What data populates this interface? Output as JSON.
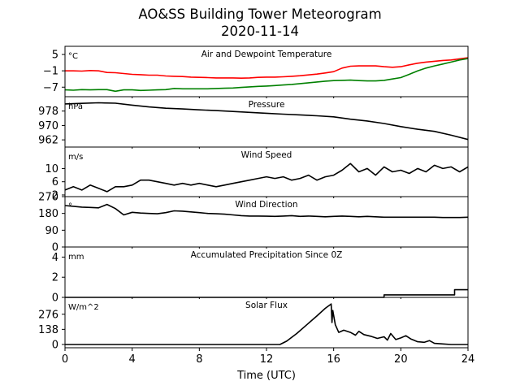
{
  "title": "AO&SS Building Tower Meteorogram",
  "subtitle": "2020-11-14",
  "xlabel": "Time (UTC)",
  "xticks": [
    "0",
    "4",
    "8",
    "12",
    "16",
    "20",
    "24"
  ],
  "colors": {
    "temperature": "#ff0000",
    "dewpoint": "#008000",
    "line": "#000000"
  },
  "chart_data": [
    {
      "type": "line",
      "title": "Air and Dewpoint Temperature",
      "unit": "°C",
      "ylim": [
        -10.5,
        8
      ],
      "yticks": [
        5,
        -1,
        -7
      ],
      "ytick_labels": [
        "5",
        "−1",
        "−7"
      ],
      "x": [
        0,
        0.5,
        1,
        1.5,
        2,
        2.5,
        3,
        3.5,
        4,
        4.5,
        5,
        5.5,
        6,
        6.5,
        7,
        7.5,
        8,
        8.5,
        9,
        9.5,
        10,
        10.5,
        11,
        11.5,
        12,
        12.5,
        13,
        13.5,
        14,
        14.5,
        15,
        15.5,
        16,
        16.5,
        17,
        17.5,
        18,
        18.5,
        19,
        19.5,
        20,
        20.5,
        21,
        21.5,
        22,
        22.5,
        23,
        23.5,
        24
      ],
      "series": [
        {
          "name": "",
          "color": "#ff0000",
          "values": [
            -1.0,
            -1.0,
            -1.1,
            -0.9,
            -1.0,
            -1.6,
            -1.7,
            -2.0,
            -2.3,
            -2.4,
            -2.6,
            -2.6,
            -2.9,
            -3.0,
            -3.1,
            -3.3,
            -3.4,
            -3.5,
            -3.6,
            -3.6,
            -3.6,
            -3.7,
            -3.6,
            -3.4,
            -3.3,
            -3.3,
            -3.2,
            -3.0,
            -2.8,
            -2.5,
            -2.2,
            -1.8,
            -1.3,
            0.0,
            0.7,
            0.8,
            0.8,
            0.8,
            0.5,
            0.3,
            0.5,
            1.2,
            1.8,
            2.2,
            2.5,
            2.8,
            3.0,
            3.4,
            3.8
          ]
        },
        {
          "name": "",
          "color": "#008000",
          "values": [
            -8.0,
            -8.1,
            -7.9,
            -8.0,
            -7.9,
            -7.9,
            -8.5,
            -8.0,
            -8.0,
            -8.2,
            -8.1,
            -8.0,
            -7.9,
            -7.5,
            -7.6,
            -7.6,
            -7.6,
            -7.6,
            -7.5,
            -7.4,
            -7.3,
            -7.1,
            -6.9,
            -6.7,
            -6.6,
            -6.4,
            -6.2,
            -6.0,
            -5.7,
            -5.4,
            -5.1,
            -4.8,
            -4.6,
            -4.5,
            -4.4,
            -4.6,
            -4.7,
            -4.7,
            -4.5,
            -4.0,
            -3.5,
            -2.3,
            -1.0,
            0.0,
            0.8,
            1.5,
            2.2,
            3.0,
            3.5
          ]
        }
      ]
    },
    {
      "type": "line",
      "title": "Pressure",
      "unit": "hPa",
      "ylim": [
        958,
        986
      ],
      "yticks": [
        978,
        970,
        962
      ],
      "ytick_labels": [
        "978",
        "970",
        "962"
      ],
      "x": [
        0,
        1,
        2,
        3,
        4,
        5,
        6,
        7,
        8,
        9,
        10,
        11,
        12,
        13,
        14,
        15,
        16,
        17,
        18,
        19,
        20,
        21,
        22,
        23,
        24
      ],
      "series": [
        {
          "name": "",
          "color": "#000000",
          "values": [
            982.0,
            982.3,
            982.6,
            982.4,
            981.3,
            980.3,
            979.6,
            979.2,
            978.7,
            978.3,
            977.8,
            977.3,
            976.8,
            976.3,
            975.9,
            975.4,
            974.8,
            973.5,
            972.5,
            971.1,
            969.4,
            967.9,
            966.7,
            964.6,
            962.2
          ]
        }
      ]
    },
    {
      "type": "line",
      "title": "Wind Speed",
      "unit": "m/s",
      "ylim": [
        1.5,
        16.5
      ],
      "yticks": [
        10,
        6,
        2
      ],
      "ytick_labels": [
        "10",
        "6",
        "2"
      ],
      "x": [
        0,
        0.5,
        1,
        1.5,
        2,
        2.5,
        3,
        3.5,
        4,
        4.5,
        5,
        5.5,
        6,
        6.5,
        7,
        7.5,
        8,
        8.5,
        9,
        9.5,
        10,
        10.5,
        11,
        11.5,
        12,
        12.5,
        13,
        13.5,
        14,
        14.5,
        15,
        15.5,
        16,
        16.5,
        17,
        17.5,
        18,
        18.5,
        19,
        19.5,
        20,
        20.5,
        21,
        21.5,
        22,
        22.5,
        23,
        23.5,
        24
      ],
      "series": [
        {
          "name": "",
          "color": "#000000",
          "values": [
            3.5,
            4.5,
            3.5,
            5.0,
            4.0,
            3.0,
            4.5,
            4.5,
            5.0,
            6.5,
            6.5,
            6.0,
            5.5,
            5.0,
            5.5,
            5.0,
            5.5,
            5.0,
            4.5,
            5.0,
            5.5,
            6.0,
            6.5,
            7.0,
            7.5,
            7.0,
            7.5,
            6.5,
            7.0,
            8.0,
            6.5,
            7.5,
            8.0,
            9.5,
            11.5,
            9.0,
            10.0,
            8.0,
            10.5,
            9.0,
            9.5,
            8.5,
            10.0,
            9.0,
            11.0,
            10.0,
            10.5,
            9.0,
            10.5
          ]
        }
      ]
    },
    {
      "type": "line",
      "title": "Wind Direction",
      "unit": "°",
      "ylim": [
        0,
        270
      ],
      "yticks": [
        270,
        180,
        90,
        0
      ],
      "ytick_labels": [
        "270",
        "180",
        "90",
        "0"
      ],
      "x": [
        0,
        0.5,
        1,
        1.5,
        2,
        2.5,
        3,
        3.5,
        4,
        4.5,
        5,
        5.5,
        6,
        6.5,
        7,
        7.5,
        8,
        8.5,
        9,
        9.5,
        10,
        10.5,
        11,
        11.5,
        12,
        12.5,
        13,
        13.5,
        14,
        14.5,
        15,
        15.5,
        16,
        16.5,
        17,
        17.5,
        18,
        18.5,
        19,
        19.5,
        20,
        20.5,
        21,
        21.5,
        22,
        22.5,
        23,
        23.5,
        24
      ],
      "series": [
        {
          "name": "",
          "color": "#000000",
          "values": [
            222,
            218,
            214,
            212,
            210,
            228,
            206,
            172,
            186,
            182,
            180,
            178,
            184,
            194,
            192,
            188,
            184,
            180,
            178,
            176,
            172,
            168,
            166,
            166,
            165,
            164,
            166,
            168,
            164,
            166,
            164,
            162,
            164,
            166,
            164,
            162,
            164,
            162,
            160,
            160,
            160,
            160,
            160,
            160,
            160,
            158,
            158,
            158,
            160
          ]
        }
      ]
    },
    {
      "type": "line",
      "title": "Accumulated Precipitation Since 0Z",
      "unit": "mm",
      "ylim": [
        0,
        5
      ],
      "yticks": [
        4,
        2,
        0
      ],
      "ytick_labels": [
        "4",
        "2",
        "0"
      ],
      "x": [
        0,
        19.0,
        19.0,
        23.2,
        23.2,
        24
      ],
      "series": [
        {
          "name": "",
          "color": "#000000",
          "values": [
            0,
            0,
            0.25,
            0.25,
            0.76,
            0.76
          ]
        }
      ]
    },
    {
      "type": "line",
      "title": "Solar Flux",
      "unit": "W/m^2",
      "ylim": [
        -30,
        430
      ],
      "yticks": [
        276,
        138,
        0
      ],
      "ytick_labels": [
        "276",
        "138",
        "0"
      ],
      "x": [
        0,
        12.8,
        13.2,
        13.8,
        14.4,
        15.0,
        15.5,
        15.85,
        15.9,
        15.95,
        16.1,
        16.3,
        16.6,
        17.0,
        17.3,
        17.5,
        17.8,
        18.2,
        18.6,
        19.0,
        19.2,
        19.4,
        19.7,
        20.0,
        20.3,
        20.6,
        21.0,
        21.4,
        21.7,
        22.0,
        22.5,
        23.0,
        24
      ],
      "series": [
        {
          "name": "",
          "color": "#000000",
          "values": [
            0,
            0,
            30,
            100,
            180,
            260,
            330,
            370,
            200,
            310,
            180,
            110,
            130,
            110,
            85,
            120,
            90,
            75,
            55,
            70,
            40,
            100,
            45,
            60,
            80,
            50,
            25,
            20,
            35,
            10,
            5,
            0,
            0
          ]
        }
      ]
    }
  ]
}
